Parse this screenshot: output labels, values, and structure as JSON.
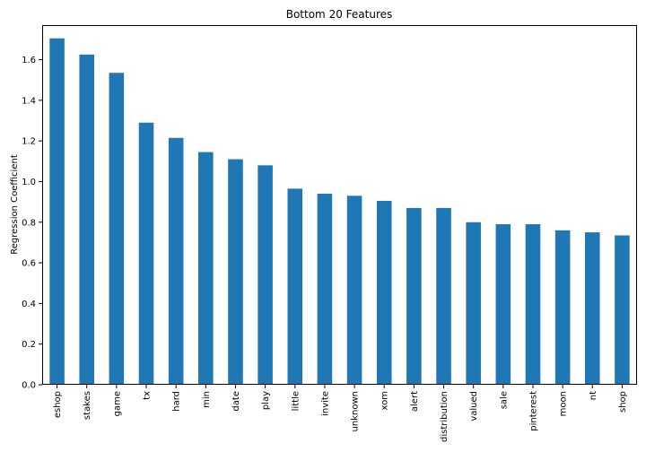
{
  "chart_data": {
    "type": "bar",
    "title": "Bottom 20 Features",
    "xlabel": "",
    "ylabel": "Regression Coefficient",
    "categories": [
      "eshop",
      "stakes",
      "game",
      "tx",
      "hard",
      "min",
      "date",
      "play",
      "little",
      "invite",
      "unknown",
      "xom",
      "alert",
      "distribution",
      "valued",
      "sale",
      "pinterest",
      "moon",
      "nt",
      "shop"
    ],
    "values": [
      1.705,
      1.625,
      1.535,
      1.29,
      1.215,
      1.145,
      1.11,
      1.08,
      0.965,
      0.94,
      0.93,
      0.905,
      0.87,
      0.87,
      0.8,
      0.79,
      0.79,
      0.76,
      0.75,
      0.735
    ],
    "ylim": [
      0,
      1.77
    ],
    "yticks": [
      0.0,
      0.2,
      0.4,
      0.6,
      0.8,
      1.0,
      1.2,
      1.4,
      1.6
    ],
    "ytick_labels": [
      "0.0",
      "0.2",
      "0.4",
      "0.6",
      "0.8",
      "1.0",
      "1.2",
      "1.4",
      "1.6"
    ],
    "grid": false,
    "legend": "none",
    "bar_color": "#1f77b4"
  }
}
